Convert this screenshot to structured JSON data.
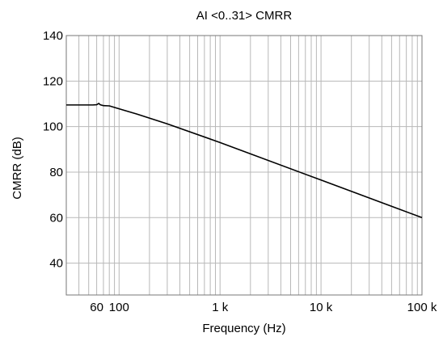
{
  "chart_data": {
    "type": "line",
    "title": "AI <0..31> CMRR",
    "xlabel": "Frequency (Hz)",
    "ylabel": "CMRR (dB)",
    "x_scale": "log",
    "xlim": [
      30,
      100000
    ],
    "ylim": [
      26,
      140
    ],
    "x_ticks": [
      {
        "value": 60,
        "label": "60"
      },
      {
        "value": 100,
        "label": "100"
      },
      {
        "value": 1000,
        "label": "1 k"
      },
      {
        "value": 10000,
        "label": "10 k"
      },
      {
        "value": 100000,
        "label": "100 k"
      }
    ],
    "y_ticks": [
      {
        "value": 40,
        "label": "40"
      },
      {
        "value": 60,
        "label": "60"
      },
      {
        "value": 80,
        "label": "80"
      },
      {
        "value": 100,
        "label": "100"
      },
      {
        "value": 120,
        "label": "120"
      },
      {
        "value": 140,
        "label": "140"
      }
    ],
    "grid": true,
    "series": [
      {
        "x": [
          30,
          55,
          60,
          63,
          65,
          70,
          80,
          100,
          150,
          300,
          1000,
          10000,
          100000
        ],
        "y": [
          109.5,
          109.5,
          109.6,
          110.2,
          109.6,
          109.2,
          109.1,
          107.8,
          105.5,
          101.2,
          93.0,
          76.5,
          60.0
        ]
      }
    ]
  }
}
